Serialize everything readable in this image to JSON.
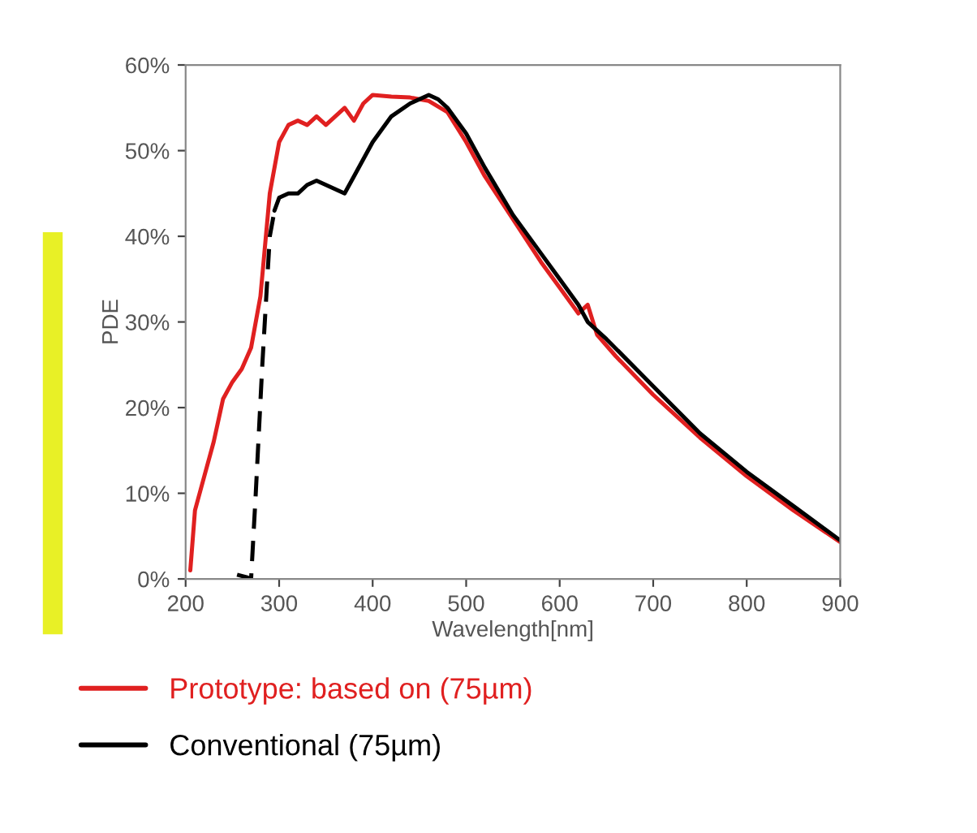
{
  "chart_data": {
    "type": "line",
    "xlabel": "Wavelength[nm]",
    "ylabel": "PDE",
    "xlim": [
      200,
      900
    ],
    "xticks": [
      200,
      300,
      400,
      500,
      600,
      700,
      800,
      900
    ],
    "ylim": [
      0,
      60
    ],
    "yticks": [
      {
        "value": 0,
        "label": "0%"
      },
      {
        "value": 10,
        "label": "10%"
      },
      {
        "value": 20,
        "label": "20%"
      },
      {
        "value": 30,
        "label": "30%"
      },
      {
        "value": 40,
        "label": "40%"
      },
      {
        "value": 50,
        "label": "50%"
      },
      {
        "value": 60,
        "label": "60%"
      }
    ],
    "grid": false,
    "legend": "bottom",
    "marker": "none",
    "series": [
      {
        "name": "Prototype: based on (75µm)",
        "color": "#e02020",
        "line_style": "solid",
        "x": [
          205,
          210,
          220,
          230,
          240,
          250,
          260,
          270,
          280,
          290,
          300,
          310,
          320,
          330,
          340,
          350,
          360,
          370,
          380,
          390,
          400,
          420,
          440,
          460,
          480,
          500,
          520,
          550,
          580,
          600,
          620,
          630,
          640,
          660,
          700,
          750,
          800,
          850,
          900
        ],
        "values": [
          1,
          8,
          12,
          16,
          21,
          23,
          24.5,
          27,
          33,
          45,
          51,
          53,
          53.5,
          53,
          54,
          53,
          54,
          55,
          53.5,
          55.5,
          56.5,
          56.3,
          56.2,
          55.8,
          54.5,
          51,
          47,
          42,
          37,
          34,
          31,
          32,
          28.5,
          26,
          21.5,
          16.5,
          12,
          8,
          4.3
        ]
      },
      {
        "name": "Conventional (75µm)",
        "color": "#000000",
        "line_style": "solid",
        "x": [
          295,
          300,
          310,
          320,
          330,
          340,
          350,
          360,
          370,
          380,
          400,
          420,
          440,
          460,
          470,
          480,
          500,
          520,
          550,
          580,
          600,
          620,
          630,
          650,
          700,
          750,
          800,
          850,
          900
        ],
        "values": [
          43,
          44.5,
          45,
          45,
          46,
          46.5,
          46,
          45.5,
          45,
          47,
          51,
          54,
          55.5,
          56.5,
          56,
          55,
          52,
          48,
          42.5,
          38,
          35,
          32,
          30,
          28,
          22.5,
          17,
          12.5,
          8.5,
          4.5
        ]
      },
      {
        "color": "#000000",
        "line_style": "dashed",
        "x": [
          255,
          265,
          270,
          275,
          282,
          290,
          295
        ],
        "values": [
          0.5,
          0.2,
          0,
          10,
          25,
          40,
          43
        ]
      }
    ]
  }
}
